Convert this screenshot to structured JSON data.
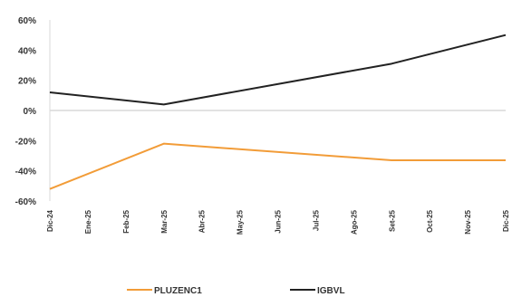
{
  "chart_data": {
    "type": "line",
    "categories": [
      "Dic-24",
      "Ene-25",
      "Feb-25",
      "Mar-25",
      "Abr-25",
      "May-25",
      "Jun-25",
      "Jul-25",
      "Ago-25",
      "Set-25",
      "Oct-25",
      "Nov-25",
      "Dic-25"
    ],
    "series": [
      {
        "name": "PLUZENC1",
        "color": "#F29C38",
        "values": [
          -52,
          null,
          null,
          -22,
          null,
          null,
          null,
          null,
          null,
          -33,
          null,
          null,
          -33
        ]
      },
      {
        "name": "IGBVL",
        "color": "#222222",
        "values": [
          12,
          null,
          null,
          4,
          null,
          null,
          null,
          null,
          null,
          31,
          null,
          null,
          50
        ]
      }
    ],
    "yticks": [
      "60%",
      "40%",
      "20%",
      "0%",
      "-20%",
      "-40%",
      "-60%"
    ],
    "ylim": [
      -60,
      60
    ],
    "zero_line_color": "#d9d9d9",
    "legend_placement": "bottom",
    "grid": false
  }
}
